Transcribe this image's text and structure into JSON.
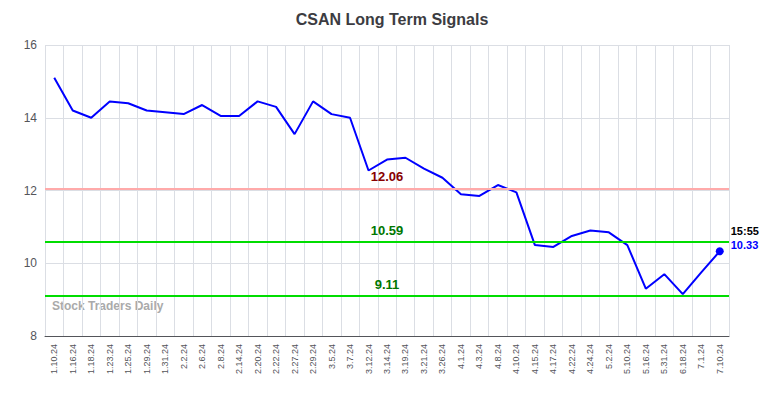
{
  "chart_data": {
    "type": "line",
    "title": "CSAN Long Term Signals",
    "categories": [
      "1.10.24",
      "1.16.24",
      "1.18.24",
      "1.23.24",
      "1.25.24",
      "1.29.24",
      "1.31.24",
      "2.2.24",
      "2.6.24",
      "2.8.24",
      "2.14.24",
      "2.20.24",
      "2.22.24",
      "2.27.24",
      "2.29.24",
      "3.5.24",
      "3.7.24",
      "3.12.24",
      "3.14.24",
      "3.19.24",
      "3.21.24",
      "3.26.24",
      "4.1.24",
      "4.3.24",
      "4.8.24",
      "4.10.24",
      "4.15.24",
      "4.17.24",
      "4.22.24",
      "4.24.24",
      "5.2.24",
      "5.10.24",
      "5.16.24",
      "5.31.24",
      "6.18.24",
      "7.1.24",
      "7.10.24"
    ],
    "values": [
      15.1,
      14.2,
      14.0,
      14.45,
      14.4,
      14.2,
      14.15,
      14.1,
      14.35,
      14.05,
      14.05,
      14.45,
      14.3,
      13.55,
      14.45,
      14.1,
      14.0,
      12.55,
      12.85,
      12.9,
      12.6,
      12.35,
      11.9,
      11.85,
      12.15,
      11.95,
      10.5,
      10.45,
      10.75,
      10.9,
      10.85,
      10.5,
      9.3,
      9.7,
      9.15,
      9.75,
      10.33
    ],
    "color": "blue",
    "marker": "last",
    "reference_lines": [
      {
        "value": 12.06,
        "label": "12.06",
        "color": "#ffaaaa",
        "label_color": "#880000"
      },
      {
        "value": 10.59,
        "label": "10.59",
        "color": "#00dd00",
        "label_color": "#007700"
      },
      {
        "value": 9.11,
        "label": "9.11",
        "color": "#00dd00",
        "label_color": "#007700"
      }
    ],
    "annotations": [
      {
        "text": "15:55",
        "x": "7.10.24",
        "y": 10.33,
        "color": "black"
      },
      {
        "text": "10.33",
        "x": "7.10.24",
        "y": 10.33,
        "color": "blue"
      }
    ],
    "watermark": "Stock Traders Daily",
    "watermark_color": "#aaaaaa",
    "ylim": [
      8,
      16
    ],
    "yticks": [
      8,
      10,
      12,
      14,
      16
    ],
    "grid": true
  }
}
